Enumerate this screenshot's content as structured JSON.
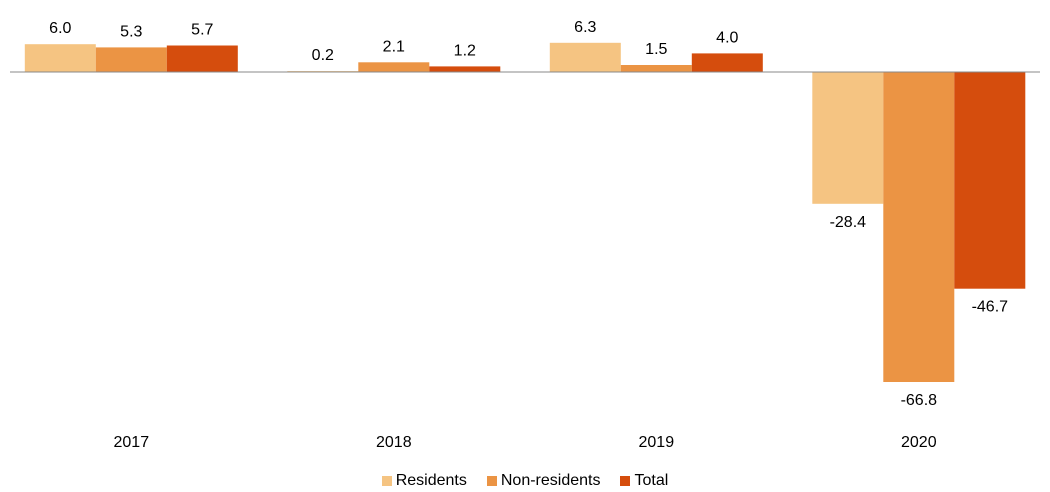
{
  "chart_data": {
    "type": "bar",
    "categories": [
      "2017",
      "2018",
      "2019",
      "2020"
    ],
    "series": [
      {
        "name": "Residents",
        "color": "#F5C482",
        "values": [
          6.0,
          0.2,
          6.3,
          -28.4
        ]
      },
      {
        "name": "Non-residents",
        "color": "#EB9444",
        "values": [
          5.3,
          2.1,
          1.5,
          -66.8
        ]
      },
      {
        "name": "Total",
        "color": "#D54D0D",
        "values": [
          5.7,
          1.2,
          4.0,
          -46.7
        ]
      }
    ],
    "ylim": [
      -70,
      8
    ],
    "data_label_format": "0.0",
    "grid": false,
    "legend_position": "bottom"
  }
}
